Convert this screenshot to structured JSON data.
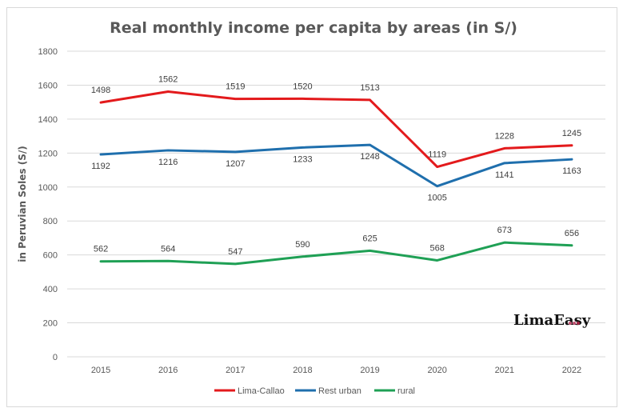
{
  "chart_data": {
    "type": "line",
    "title": "Real monthly income per capita by areas (in S/)",
    "xlabel": "",
    "ylabel": "in Peruvian Soles (S/)",
    "x": [
      "2015",
      "2016",
      "2017",
      "2018",
      "2019",
      "2020",
      "2021",
      "2022"
    ],
    "ylim": [
      0,
      1800
    ],
    "yticks": [
      0,
      200,
      400,
      600,
      800,
      1000,
      1200,
      1400,
      1600,
      1800
    ],
    "grid": true,
    "legend_position": "bottom",
    "series": [
      {
        "name": "Lima-Callao",
        "color": "#e31a1c",
        "values": [
          1498,
          1562,
          1519,
          1520,
          1513,
          1119,
          1228,
          1245
        ],
        "label_pos": [
          "above",
          "above",
          "above",
          "above",
          "above",
          "above",
          "above",
          "above"
        ]
      },
      {
        "name": "Rest urban",
        "color": "#1f6fad",
        "values": [
          1192,
          1216,
          1207,
          1233,
          1248,
          1005,
          1141,
          1163
        ],
        "label_pos": [
          "below",
          "below",
          "below",
          "below",
          "below",
          "below",
          "below",
          "below"
        ]
      },
      {
        "name": "rural",
        "color": "#1fa055",
        "values": [
          562,
          564,
          547,
          590,
          625,
          568,
          673,
          656
        ],
        "label_pos": [
          "above",
          "above",
          "above",
          "above",
          "above",
          "above",
          "above",
          "above"
        ]
      }
    ]
  },
  "watermark": {
    "text": "LimaEasy",
    "dots": [
      "#c05070",
      "#c05070",
      "#a02040"
    ]
  }
}
